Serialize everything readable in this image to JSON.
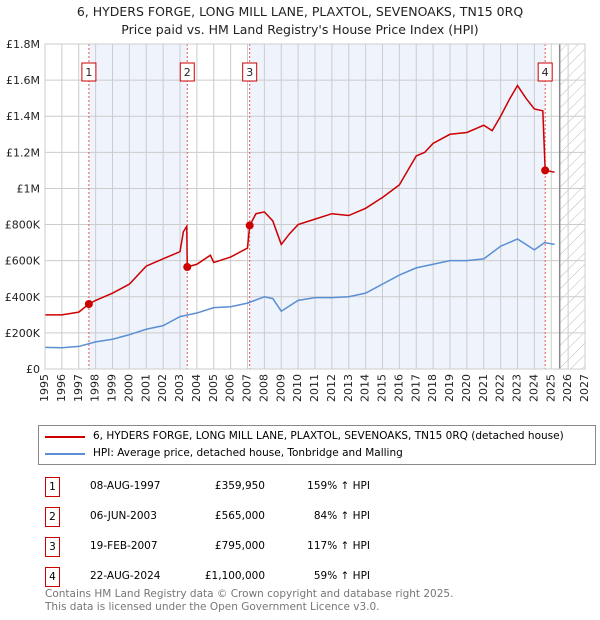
{
  "chart_data": {
    "type": "line",
    "title": "6, HYDERS FORGE, LONG MILL LANE, PLAXTOL, SEVENOAKS, TN15 0RQ",
    "subtitle": "Price paid vs. HM Land Registry's House Price Index (HPI)",
    "xlim": [
      1995,
      2027
    ],
    "ylim": [
      0,
      1800000
    ],
    "x_ticks": [
      "1995",
      "1996",
      "1997",
      "1998",
      "1999",
      "2000",
      "2001",
      "2002",
      "2003",
      "2004",
      "2005",
      "2006",
      "2007",
      "2008",
      "2009",
      "2010",
      "2011",
      "2012",
      "2013",
      "2014",
      "2015",
      "2016",
      "2017",
      "2018",
      "2019",
      "2020",
      "2021",
      "2022",
      "2023",
      "2024",
      "2025",
      "2026",
      "2027"
    ],
    "y_ticks": [
      {
        "v": 0,
        "label": "£0"
      },
      {
        "v": 200000,
        "label": "£200K"
      },
      {
        "v": 400000,
        "label": "£400K"
      },
      {
        "v": 600000,
        "label": "£600K"
      },
      {
        "v": 800000,
        "label": "£800K"
      },
      {
        "v": 1000000,
        "label": "£1M"
      },
      {
        "v": 1200000,
        "label": "£1.2M"
      },
      {
        "v": 1400000,
        "label": "£1.4M"
      },
      {
        "v": 1600000,
        "label": "£1.6M"
      },
      {
        "v": 1800000,
        "label": "£1.8M"
      }
    ],
    "grid": true,
    "forecast_from": 2025.5,
    "series": [
      {
        "name": "6, HYDERS FORGE, LONG MILL LANE, PLAXTOL, SEVENOAKS, TN15 0RQ (detached house)",
        "color": "#cc0000",
        "x": [
          1995,
          1996,
          1997,
          1997.6,
          1998,
          1999,
          2000,
          2001,
          2002,
          2003,
          2003.2,
          2003.4,
          2003.43,
          2004,
          2004.8,
          2005,
          2006,
          2007,
          2007.13,
          2007.5,
          2008,
          2008.5,
          2009,
          2009.5,
          2010,
          2011,
          2012,
          2013,
          2014,
          2015,
          2016,
          2016.5,
          2017,
          2017.5,
          2018,
          2019,
          2020,
          2021,
          2021.5,
          2022,
          2022.5,
          2023,
          2023.5,
          2024,
          2024.5,
          2024.64,
          2025.2
        ],
        "y": [
          300000,
          300000,
          315000,
          360000,
          380000,
          420000,
          470000,
          570000,
          610000,
          650000,
          760000,
          790000,
          565000,
          580000,
          630000,
          590000,
          620000,
          670000,
          795000,
          860000,
          870000,
          820000,
          690000,
          750000,
          800000,
          830000,
          860000,
          850000,
          890000,
          950000,
          1020000,
          1100000,
          1180000,
          1200000,
          1250000,
          1300000,
          1310000,
          1350000,
          1320000,
          1400000,
          1490000,
          1570000,
          1500000,
          1440000,
          1430000,
          1100000,
          1090000
        ]
      },
      {
        "name": "HPI: Average price, detached house, Tonbridge and Malling",
        "color": "#5b8fd4",
        "x": [
          1995,
          1996,
          1997,
          1998,
          1999,
          2000,
          2001,
          2002,
          2003,
          2004,
          2005,
          2006,
          2007,
          2008,
          2008.5,
          2009,
          2010,
          2011,
          2012,
          2013,
          2014,
          2015,
          2016,
          2017,
          2018,
          2019,
          2020,
          2021,
          2022,
          2023,
          2024,
          2024.6,
          2025.2
        ],
        "y": [
          120000,
          118000,
          125000,
          150000,
          165000,
          190000,
          220000,
          240000,
          290000,
          310000,
          340000,
          345000,
          365000,
          400000,
          390000,
          320000,
          380000,
          395000,
          395000,
          400000,
          420000,
          470000,
          520000,
          560000,
          580000,
          600000,
          600000,
          610000,
          680000,
          720000,
          660000,
          700000,
          690000
        ]
      }
    ],
    "sales": [
      {
        "n": "1",
        "x": 1997.6,
        "price": 359950,
        "date": "08-AUG-1997",
        "price_label": "£359,950",
        "hpi": "159% ↑ HPI"
      },
      {
        "n": "2",
        "x": 2003.43,
        "price": 565000,
        "date": "06-JUN-2003",
        "price_label": "£565,000",
        "hpi": "84% ↑ HPI"
      },
      {
        "n": "3",
        "x": 2007.13,
        "price": 795000,
        "date": "19-FEB-2007",
        "price_label": "£795,000",
        "hpi": "117% ↑ HPI"
      },
      {
        "n": "4",
        "x": 2024.64,
        "price": 1100000,
        "date": "22-AUG-2024",
        "price_label": "£1,100,000",
        "hpi": "59% ↑ HPI"
      }
    ]
  },
  "footer": {
    "line1": "Contains HM Land Registry data © Crown copyright and database right 2025.",
    "line2": "This data is licensed under the Open Government Licence v3.0."
  }
}
